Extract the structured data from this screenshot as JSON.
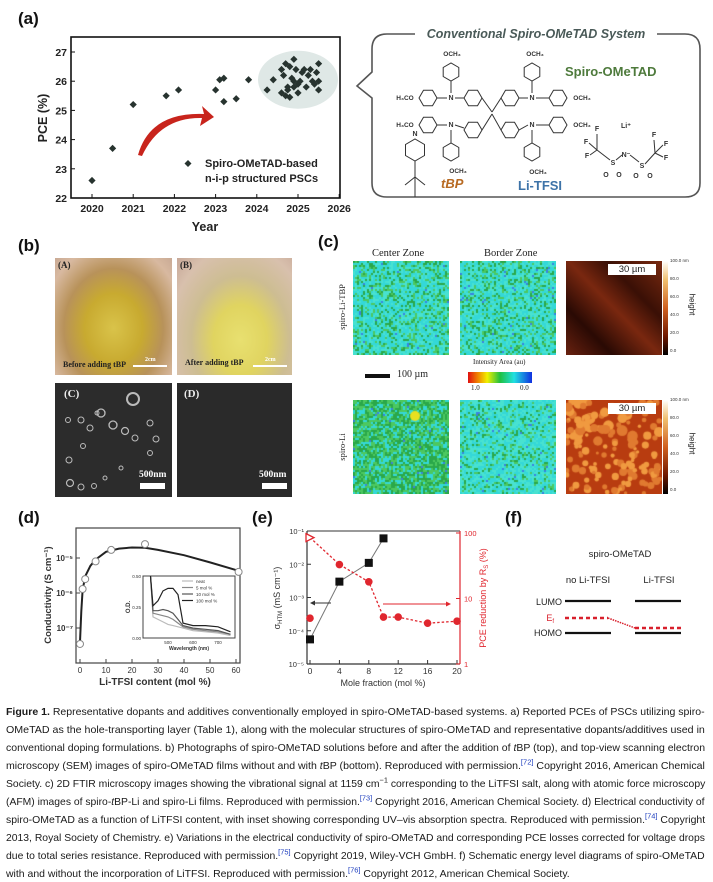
{
  "panels": {
    "a": {
      "label": "(a)",
      "box_title": "Conventional Spiro-OMeTAD System",
      "molecules": {
        "spiro": "Spiro-OMeTAD",
        "tbp": "tBP",
        "litfsi": "Li-TFSI"
      },
      "chem_labels": {
        "och3": "OCH₃",
        "h3co": "H₃CO",
        "n": "N",
        "li": "Li⁺",
        "f": "F",
        "s": "S",
        "o": "O",
        "n_minus": "N⁻"
      },
      "colors": {
        "spiro": "#4e7a3c",
        "tbp": "#b86a22",
        "litfsi": "#3d73a8",
        "arrow": "#c8241c",
        "cluster": "#dfe8e6"
      }
    },
    "b": {
      "label": "(b)",
      "photo_a": "(A)",
      "photo_b": "(B)",
      "caption_a": "Before adding tBP",
      "caption_b": "After adding tBP",
      "scale_photo": "2cm",
      "sem_c": "(C)",
      "sem_d": "(D)",
      "scale_sem": "500nm"
    },
    "c": {
      "label": "(c)",
      "col1": "Center Zone",
      "col2": "Border Zone",
      "row1": "spiro-Li-TBP",
      "row2": "spiro-Li",
      "scale_bar": "100 µm",
      "intensity_title": "Intensity Area (au)",
      "intensity_min": "1.0",
      "intensity_max": "0.0",
      "afm_scale": "30 µm",
      "height_label": "height",
      "height_ticks": [
        "100.0 nm",
        "80.0",
        "60.0",
        "40.0",
        "20.0",
        "0.0"
      ]
    },
    "d": {
      "label": "(d)"
    },
    "e": {
      "label": "(e)"
    },
    "f": {
      "label": "(f)",
      "title": "spiro-OMeTAD",
      "col1": "no Li-TFSI",
      "col2": "Li-TFSI",
      "lumo": "LUMO",
      "ef": "E",
      "ef_sub": "f",
      "homo": "HOMO",
      "ef_color": "#d8202c"
    }
  },
  "chart_data": [
    {
      "id": "a",
      "type": "scatter",
      "xlabel": "Year",
      "ylabel": "PCE (%)",
      "xlim": [
        2020,
        2026
      ],
      "ylim": [
        22,
        27.5
      ],
      "xticks": [
        "2020",
        "2021",
        "2022",
        "2023",
        "2024",
        "2025",
        "2026"
      ],
      "yticks": [
        "22",
        "23",
        "24",
        "25",
        "26",
        "27"
      ],
      "legend": [
        "Spiro-OMeTAD-based",
        "n-i-p structured PSCs"
      ],
      "legend_position": "bottom-right",
      "grid": false,
      "points": [
        [
          2020,
          22.6
        ],
        [
          2020.5,
          23.7
        ],
        [
          2021,
          25.2
        ],
        [
          2021.8,
          25.5
        ],
        [
          2022.1,
          25.7
        ],
        [
          2023,
          25.7
        ],
        [
          2023.1,
          26.05
        ],
        [
          2023.2,
          26.1
        ],
        [
          2023.2,
          25.3
        ],
        [
          2023.5,
          25.4
        ],
        [
          2023.8,
          26.05
        ],
        [
          2024.25,
          25.7
        ],
        [
          2024.4,
          26.05
        ],
        [
          2024.6,
          26.4
        ],
        [
          2024.65,
          26.2
        ],
        [
          2024.7,
          26.6
        ],
        [
          2024.75,
          25.7
        ],
        [
          2024.7,
          25.5
        ],
        [
          2024.8,
          26.5
        ],
        [
          2024.85,
          26.1
        ],
        [
          2024.9,
          26.75
        ],
        [
          2024.9,
          25.8
        ],
        [
          2024.95,
          26.4
        ],
        [
          2024.8,
          25.45
        ],
        [
          2025.0,
          25.9
        ],
        [
          2024.6,
          25.6
        ],
        [
          2025.0,
          25.6
        ],
        [
          2025.1,
          26.3
        ],
        [
          2025.15,
          26.4
        ],
        [
          2025.2,
          25.8
        ],
        [
          2025.25,
          26.2
        ],
        [
          2025.3,
          26.4
        ],
        [
          2025.35,
          26.0
        ],
        [
          2025.4,
          25.9
        ],
        [
          2025.45,
          26.3
        ],
        [
          2025.5,
          26.6
        ],
        [
          2025.5,
          26.0
        ],
        [
          2025.5,
          25.7
        ],
        [
          2024.9,
          26.0
        ],
        [
          2024.75,
          25.8
        ],
        [
          2025.05,
          26.0
        ]
      ]
    },
    {
      "id": "d",
      "type": "scatter",
      "xlabel": "Li-TFSI content (mol %)",
      "ylabel": "Conductivity (S cm⁻¹)",
      "yscale": "log",
      "xlim": [
        -2,
        62
      ],
      "ylim": [
        1e-08,
        7e-05
      ],
      "xticks": [
        "0",
        "10",
        "20",
        "30",
        "40",
        "50",
        "60"
      ],
      "yticks": [
        "10⁻⁵",
        "10⁻⁶",
        "10⁻⁷"
      ],
      "points": [
        [
          0,
          3.5e-08
        ],
        [
          1,
          1.3e-06
        ],
        [
          2,
          2.5e-06
        ],
        [
          6,
          8e-06
        ],
        [
          12,
          1.7e-05
        ],
        [
          25,
          2.5e-05
        ],
        [
          61,
          4e-06
        ]
      ],
      "fit": [
        [
          0,
          4e-08
        ],
        [
          0.5,
          3e-07
        ],
        [
          1,
          1.2e-06
        ],
        [
          2,
          3e-06
        ],
        [
          4,
          6e-06
        ],
        [
          6,
          9e-06
        ],
        [
          10,
          1.5e-05
        ],
        [
          15,
          1.85e-05
        ],
        [
          20,
          2e-05
        ],
        [
          25,
          1.95e-05
        ],
        [
          30,
          1.7e-05
        ],
        [
          40,
          1.2e-05
        ],
        [
          50,
          7.5e-06
        ],
        [
          61,
          4.3e-06
        ]
      ],
      "inset": {
        "xlabel": "Wavelength (nm)",
        "ylabel": "O.D.",
        "xlim": [
          400,
          760
        ],
        "ylim": [
          0,
          0.5
        ],
        "xticks": [
          "500",
          "600",
          "700"
        ],
        "yticks": [
          "0.00",
          "0.25",
          "0.50"
        ],
        "x": [
          430,
          440,
          460,
          480,
          500,
          520,
          540,
          560,
          600,
          650,
          700,
          750
        ],
        "series": [
          {
            "name": "neat",
            "color": "#bbbbbb",
            "values": [
              0.5,
              0.17,
              0.15,
              0.13,
              0.11,
              0.1,
              0.09,
              0.08,
              0.06,
              0.05,
              0.04,
              0.02
            ]
          },
          {
            "name": "5 mol %",
            "color": "#888888",
            "values": [
              0.5,
              0.2,
              0.19,
              0.18,
              0.17,
              0.15,
              0.12,
              0.09,
              0.07,
              0.06,
              0.05,
              0.03
            ]
          },
          {
            "name": "10 mol %",
            "color": "#555555",
            "values": [
              0.5,
              0.22,
              0.22,
              0.23,
              0.22,
              0.2,
              0.15,
              0.1,
              0.08,
              0.07,
              0.06,
              0.03
            ]
          },
          {
            "name": "100 mol %",
            "color": "#222222",
            "values": [
              0.5,
              0.26,
              0.3,
              0.38,
              0.4,
              0.4,
              0.35,
              0.12,
              0.1,
              0.1,
              0.09,
              0.05
            ]
          }
        ]
      }
    },
    {
      "id": "e",
      "type": "line",
      "xlabel": "Mole fraction (mol %)",
      "ylabel_left": "σ",
      "ylabel_left_sub": "HTM",
      "ylabel_left_unit": " (mS cm⁻¹)",
      "ylabel_right": "PCE reduction by R",
      "ylabel_right_sub": "S",
      "ylabel_right_unit": " (%)",
      "xlim": [
        -0.5,
        20.5
      ],
      "ylim_left": [
        1e-05,
        0.1
      ],
      "ylim_right": [
        1,
        100
      ],
      "yscale": "log",
      "xticks": [
        "0",
        "4",
        "8",
        "12",
        "16",
        "20"
      ],
      "yticks_left": [
        "10⁻⁵",
        "10⁻⁴",
        "10⁻³",
        "10⁻²",
        "10⁻¹"
      ],
      "yticks_right": [
        "1",
        "10",
        "100"
      ],
      "series": [
        {
          "axis": "left",
          "marker": "square",
          "color": "#111111",
          "x": [
            0,
            4,
            8,
            10
          ],
          "values": [
            5.5e-05,
            0.003,
            0.011,
            0.06
          ]
        },
        {
          "axis": "right",
          "marker": "circle",
          "color": "#e0262e",
          "x": [
            4,
            8,
            10,
            12,
            16,
            20
          ],
          "values": [
            33,
            18,
            5.2,
            5.2,
            4.2,
            4.5
          ],
          "triangle_at_0": 85,
          "standalone_at_0": 5.0
        }
      ]
    }
  ],
  "caption": {
    "lines": [
      [
        {
          "t": "Figure 1.",
          "b": true
        },
        {
          "t": "  Representative dopants and additives conventionally employed in spiro-OMeTAD-based systems. a) Reported PCEs of PSCs utilizing spiro-"
        }
      ],
      [
        {
          "t": "OMeTAD as the hole-transporting layer (Table 1), along with the molecular structures of spiro-OMeTAD and representative dopants/additives used in"
        }
      ],
      [
        {
          "t": "conventional doping formulations. b) Photographs of spiro-OMeTAD solutions before and after the addition of "
        },
        {
          "t": "t",
          "i": true
        },
        {
          "t": "BP (top), and top-view scanning electron"
        }
      ],
      [
        {
          "t": "microscopy (SEM) images of spiro-OMeTAD films without and with "
        },
        {
          "t": "t",
          "i": true
        },
        {
          "t": "BP (bottom). Reproduced with permission."
        },
        {
          "t": "[72]",
          "s": true
        },
        {
          "t": " Copyright 2016, American Chemical"
        }
      ],
      [
        {
          "t": "Society. c) 2D FTIR microscopy images showing the vibrational signal at 1159 cm"
        },
        {
          "t": "−1",
          "s": true,
          "k": true
        },
        {
          "t": " corresponding to the LiTFSI salt, along with atomic force microscopy"
        }
      ],
      [
        {
          "t": "(AFM) images of spiro-"
        },
        {
          "t": "t",
          "i": true
        },
        {
          "t": "BP-Li and spiro-Li films. Reproduced with permission."
        },
        {
          "t": "[73]",
          "s": true
        },
        {
          "t": " Copyright 2016, American Chemical Society. d) Electrical conductivity of"
        }
      ],
      [
        {
          "t": "spiro-OMeTAD as a function of LiTFSI content, with inset showing corresponding UV–vis absorption spectra. Reproduced with permission."
        },
        {
          "t": "[74]",
          "s": true
        },
        {
          "t": " Copyright"
        }
      ],
      [
        {
          "t": "2013, Royal Society of Chemistry. e) Variations in the electrical conductivity of spiro-OMeTAD and corresponding PCE losses corrected for voltage drops"
        }
      ],
      [
        {
          "t": "due to total series resistance. Reproduced with permission."
        },
        {
          "t": "[75]",
          "s": true
        },
        {
          "t": " Copyright 2019, Wiley-VCH GmbH. f) Schematic energy level diagrams of spiro-OMeTAD"
        }
      ],
      [
        {
          "t": "with and without the incorporation of LiTFSI. Reproduced with permission."
        },
        {
          "t": "[76]",
          "s": true
        },
        {
          "t": " Copyright 2012, American Chemical Society."
        }
      ]
    ]
  }
}
